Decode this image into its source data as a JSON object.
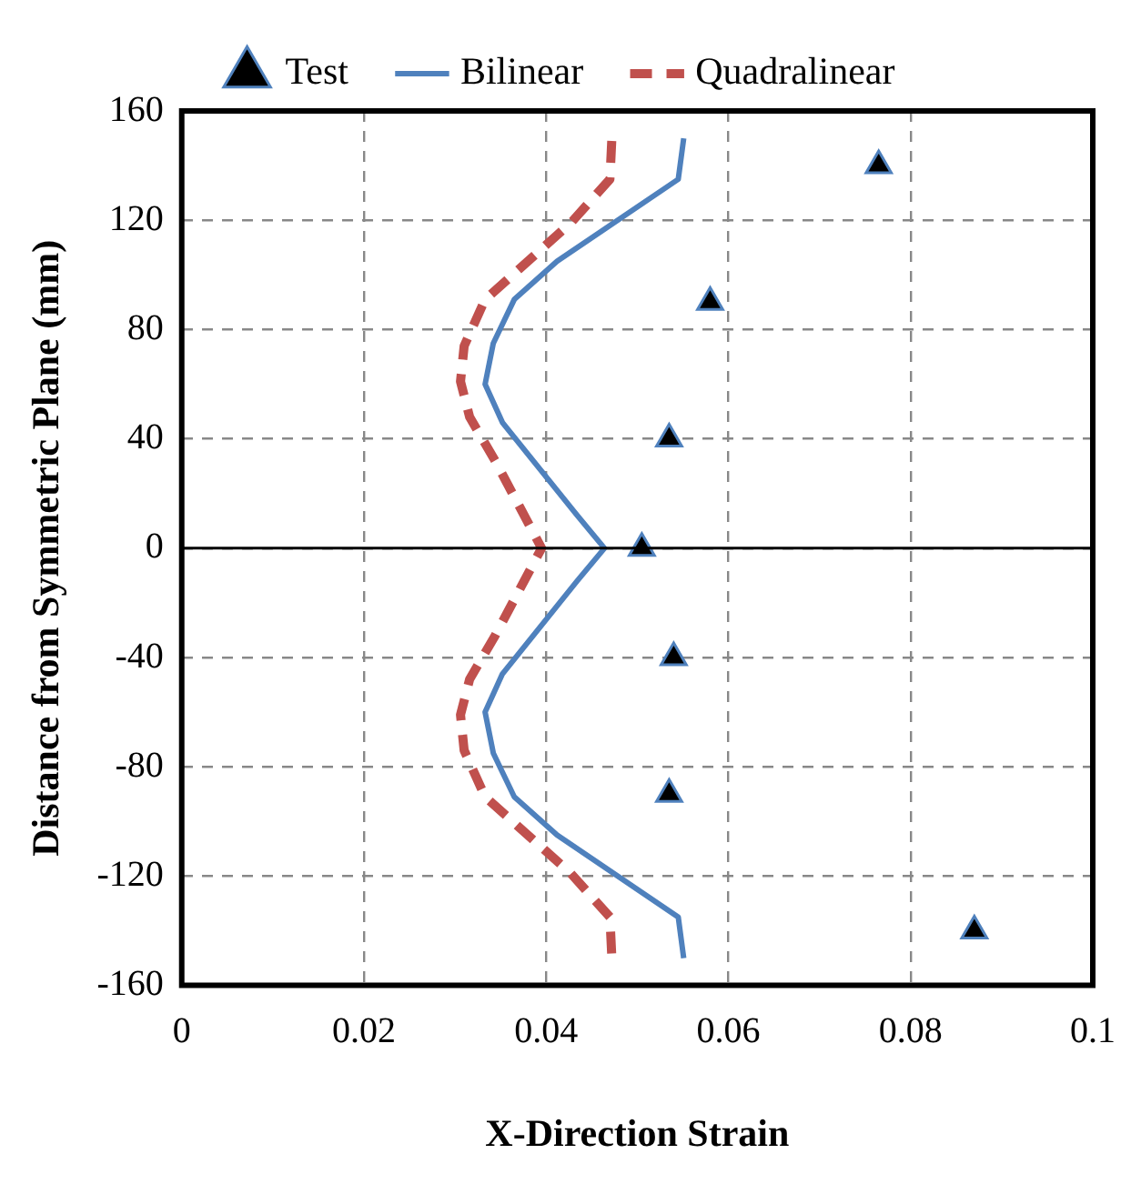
{
  "chart_data": {
    "type": "line",
    "xlabel": "X-Direction Strain",
    "ylabel": "Distance from Symmetric Plane (mm)",
    "xlim": [
      0,
      0.1
    ],
    "xticks": [
      0,
      0.02,
      0.04,
      0.06,
      0.08,
      0.1
    ],
    "ylim": [
      -160,
      160
    ],
    "yticks": [
      -160,
      -120,
      -80,
      -40,
      0,
      40,
      80,
      120,
      160
    ],
    "grid": true,
    "legend": "top",
    "ref_lines": [
      {
        "axis": "y",
        "value": 0,
        "color": "#000000",
        "line_style": "solid"
      }
    ],
    "series": [
      {
        "name": "Test",
        "type": "scatter",
        "marker": "triangle",
        "color": "#000000",
        "x": [
          0.0765,
          0.058,
          0.0535,
          0.0505,
          0.054,
          0.0535,
          0.087
        ],
        "values": [
          140,
          90,
          40,
          0,
          -40,
          -90,
          -140
        ]
      },
      {
        "name": "Bilinear",
        "line_style": "solid",
        "marker": "none",
        "color": "#4f81bd",
        "x": [
          0.0551,
          0.0545,
          0.0412,
          0.0365,
          0.0342,
          0.0333,
          0.0352,
          0.0434,
          0.0464,
          0.0434,
          0.0352,
          0.0333,
          0.0342,
          0.0365,
          0.0412,
          0.0545,
          0.0551
        ],
        "values": [
          150,
          135,
          105,
          91,
          75,
          60,
          46,
          12,
          0,
          -12,
          -46,
          -60,
          -75,
          -91,
          -105,
          -135,
          -150
        ]
      },
      {
        "name": "Quadralinear",
        "line_style": "dashed",
        "marker": "none",
        "color": "#c0504d",
        "x": [
          0.0472,
          0.047,
          0.0427,
          0.0333,
          0.031,
          0.0306,
          0.0316,
          0.0344,
          0.0395,
          0.0344,
          0.0316,
          0.0306,
          0.031,
          0.0333,
          0.0427,
          0.047,
          0.0472
        ],
        "values": [
          149,
          135,
          119,
          91,
          74,
          61,
          48,
          32,
          0,
          -32,
          -48,
          -61,
          -74,
          -91,
          -119,
          -135,
          -149
        ]
      }
    ]
  }
}
